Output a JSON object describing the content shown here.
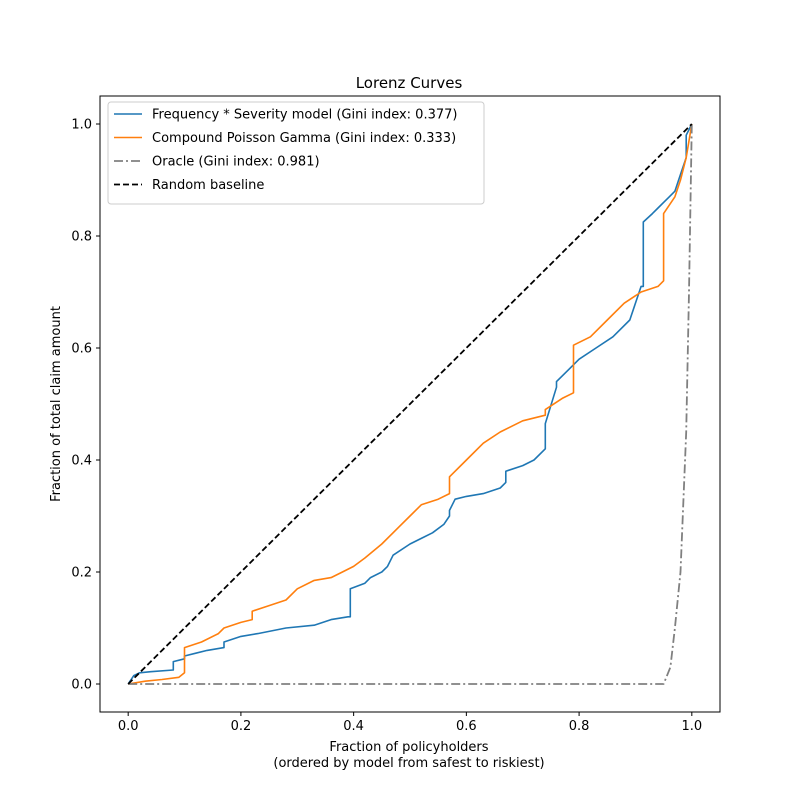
{
  "chart_data": {
    "type": "line",
    "title": "Lorenz Curves",
    "xlabel": "Fraction of policyholders",
    "xlabel_sub": "(ordered by model from safest to riskiest)",
    "ylabel": "Fraction of total claim amount",
    "xlim": [
      -0.05,
      1.05
    ],
    "ylim": [
      -0.05,
      1.05
    ],
    "xticks": [
      0.0,
      0.2,
      0.4,
      0.6,
      0.8,
      1.0
    ],
    "yticks": [
      0.0,
      0.2,
      0.4,
      0.6,
      0.8,
      1.0
    ],
    "xtick_labels": [
      "0.0",
      "0.2",
      "0.4",
      "0.6",
      "0.8",
      "1.0"
    ],
    "ytick_labels": [
      "0.0",
      "0.2",
      "0.4",
      "0.6",
      "0.8",
      "1.0"
    ],
    "grid": false,
    "legend_position": "top-left",
    "series": [
      {
        "name": "Frequency * Severity model (Gini index: 0.377)",
        "color": "#1f77b4",
        "style": "solid",
        "x": [
          0.0,
          0.01,
          0.02,
          0.04,
          0.08,
          0.08,
          0.1,
          0.1,
          0.12,
          0.14,
          0.17,
          0.17,
          0.2,
          0.23,
          0.28,
          0.33,
          0.36,
          0.39,
          0.394,
          0.394,
          0.42,
          0.43,
          0.45,
          0.46,
          0.47,
          0.5,
          0.52,
          0.54,
          0.56,
          0.57,
          0.57,
          0.58,
          0.6,
          0.63,
          0.66,
          0.67,
          0.67,
          0.7,
          0.72,
          0.74,
          0.74,
          0.76,
          0.76,
          0.78,
          0.8,
          0.83,
          0.86,
          0.89,
          0.91,
          0.914,
          0.914,
          0.93,
          0.94,
          0.95,
          0.96,
          0.97,
          0.98,
          0.99,
          0.99,
          1.0
        ],
        "y": [
          0.0,
          0.015,
          0.02,
          0.022,
          0.025,
          0.04,
          0.045,
          0.05,
          0.055,
          0.06,
          0.065,
          0.075,
          0.085,
          0.09,
          0.1,
          0.105,
          0.115,
          0.12,
          0.12,
          0.17,
          0.18,
          0.19,
          0.2,
          0.21,
          0.23,
          0.25,
          0.26,
          0.27,
          0.285,
          0.3,
          0.31,
          0.33,
          0.335,
          0.34,
          0.35,
          0.36,
          0.38,
          0.39,
          0.4,
          0.42,
          0.465,
          0.53,
          0.54,
          0.56,
          0.58,
          0.6,
          0.62,
          0.65,
          0.71,
          0.71,
          0.825,
          0.84,
          0.85,
          0.86,
          0.87,
          0.88,
          0.91,
          0.94,
          0.98,
          1.0
        ]
      },
      {
        "name": "Compound Poisson Gamma (Gini index: 0.333)",
        "color": "#ff7f0e",
        "style": "solid",
        "x": [
          0.0,
          0.03,
          0.06,
          0.09,
          0.1,
          0.1,
          0.13,
          0.16,
          0.17,
          0.2,
          0.22,
          0.22,
          0.25,
          0.28,
          0.3,
          0.33,
          0.36,
          0.38,
          0.4,
          0.42,
          0.45,
          0.48,
          0.5,
          0.52,
          0.55,
          0.57,
          0.57,
          0.6,
          0.63,
          0.66,
          0.7,
          0.74,
          0.74,
          0.77,
          0.79,
          0.79,
          0.82,
          0.85,
          0.88,
          0.91,
          0.94,
          0.95,
          0.95,
          0.97,
          0.98,
          0.99,
          1.0
        ],
        "y": [
          0.0,
          0.005,
          0.008,
          0.012,
          0.02,
          0.065,
          0.075,
          0.09,
          0.1,
          0.11,
          0.115,
          0.13,
          0.14,
          0.15,
          0.17,
          0.185,
          0.19,
          0.2,
          0.21,
          0.225,
          0.25,
          0.28,
          0.3,
          0.32,
          0.33,
          0.34,
          0.37,
          0.4,
          0.43,
          0.45,
          0.47,
          0.48,
          0.49,
          0.51,
          0.52,
          0.605,
          0.62,
          0.65,
          0.68,
          0.7,
          0.71,
          0.72,
          0.84,
          0.87,
          0.9,
          0.94,
          1.0
        ]
      },
      {
        "name": "Oracle (Gini index: 0.981)",
        "color": "#808080",
        "style": "dashdot",
        "x": [
          0.0,
          0.2,
          0.4,
          0.6,
          0.8,
          0.95,
          0.962,
          0.97,
          0.98,
          0.99,
          0.995,
          1.0
        ],
        "y": [
          0.0,
          0.0,
          0.0,
          0.0,
          0.0,
          0.0,
          0.03,
          0.1,
          0.2,
          0.45,
          0.7,
          1.0
        ]
      },
      {
        "name": "Random baseline",
        "color": "#000000",
        "style": "dashed",
        "x": [
          0.0,
          1.0
        ],
        "y": [
          0.0,
          1.0
        ]
      }
    ]
  }
}
